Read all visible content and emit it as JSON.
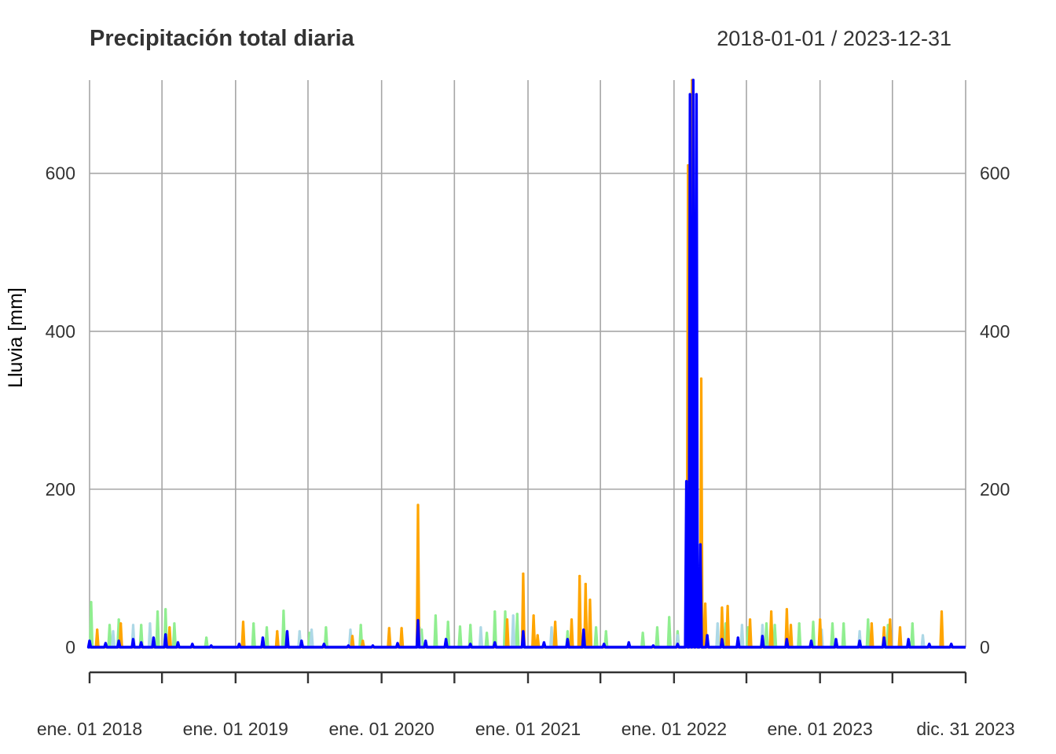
{
  "chart_data": {
    "type": "line",
    "title": "Precipitación total diaria",
    "date_range_label": "2018-01-01 / 2023-12-31",
    "xlabel": "",
    "ylabel": "Lluvia [mm]",
    "ylim": [
      0,
      718
    ],
    "y_ticks": [
      0,
      200,
      400,
      600
    ],
    "x_range": [
      "2018-01-01",
      "2023-12-31"
    ],
    "x_ticks": [
      {
        "date": "2018-01-01",
        "label": "ene. 01 2018"
      },
      {
        "date": "2019-01-01",
        "label": "ene. 01 2019"
      },
      {
        "date": "2020-01-01",
        "label": "ene. 01 2020"
      },
      {
        "date": "2021-01-01",
        "label": "ene. 01 2021"
      },
      {
        "date": "2022-01-01",
        "label": "ene. 01 2022"
      },
      {
        "date": "2023-01-01",
        "label": "ene. 01 2023"
      },
      {
        "date": "2023-12-31",
        "label": "dic. 31 2023"
      }
    ],
    "minor_x_ticks": [
      "2018-07-01",
      "2019-07-01",
      "2020-07-01",
      "2021-07-01",
      "2022-07-01",
      "2023-07-01"
    ],
    "grid": true,
    "secondary_y_axis": true,
    "legend": "none",
    "series": [
      {
        "color": "#90EE90",
        "points": [
          [
            "2018-01-05",
            57
          ],
          [
            "2018-02-20",
            28
          ],
          [
            "2018-03-15",
            35
          ],
          [
            "2018-05-10",
            28
          ],
          [
            "2018-06-20",
            45
          ],
          [
            "2018-07-10",
            48
          ],
          [
            "2018-08-01",
            30
          ],
          [
            "2018-10-20",
            12
          ],
          [
            "2019-02-15",
            30
          ],
          [
            "2019-03-20",
            25
          ],
          [
            "2019-05-01",
            46
          ],
          [
            "2019-07-05",
            18
          ],
          [
            "2019-08-15",
            25
          ],
          [
            "2019-11-10",
            28
          ],
          [
            "2020-04-10",
            22
          ],
          [
            "2020-05-15",
            40
          ],
          [
            "2020-06-15",
            32
          ],
          [
            "2020-07-15",
            26
          ],
          [
            "2020-08-10",
            28
          ],
          [
            "2020-09-20",
            18
          ],
          [
            "2020-10-10",
            45
          ],
          [
            "2020-11-05",
            45
          ],
          [
            "2020-12-05",
            42
          ],
          [
            "2021-03-10",
            22
          ],
          [
            "2021-04-10",
            20
          ],
          [
            "2021-06-20",
            25
          ],
          [
            "2021-07-15",
            20
          ],
          [
            "2021-10-15",
            18
          ],
          [
            "2021-11-20",
            25
          ],
          [
            "2021-12-20",
            38
          ],
          [
            "2022-01-10",
            20
          ],
          [
            "2022-03-01",
            28
          ],
          [
            "2022-05-10",
            30
          ],
          [
            "2022-07-05",
            25
          ],
          [
            "2022-08-20",
            30
          ],
          [
            "2022-09-10",
            28
          ],
          [
            "2022-11-10",
            30
          ],
          [
            "2022-12-15",
            32
          ],
          [
            "2023-02-01",
            30
          ],
          [
            "2023-03-01",
            30
          ],
          [
            "2023-05-01",
            35
          ],
          [
            "2023-06-20",
            28
          ],
          [
            "2023-08-20",
            30
          ]
        ]
      },
      {
        "color": "#ADD8E6",
        "points": [
          [
            "2018-03-01",
            20
          ],
          [
            "2018-04-20",
            28
          ],
          [
            "2018-06-01",
            30
          ],
          [
            "2019-06-10",
            20
          ],
          [
            "2019-07-10",
            22
          ],
          [
            "2019-10-15",
            22
          ],
          [
            "2020-04-05",
            25
          ],
          [
            "2020-09-05",
            25
          ],
          [
            "2020-11-25",
            40
          ],
          [
            "2021-03-01",
            25
          ],
          [
            "2021-06-05",
            18
          ],
          [
            "2022-01-10",
            15
          ],
          [
            "2022-02-15",
            15
          ],
          [
            "2022-03-05",
            48
          ],
          [
            "2022-04-20",
            30
          ],
          [
            "2022-06-20",
            28
          ],
          [
            "2022-08-10",
            28
          ],
          [
            "2023-01-05",
            22
          ],
          [
            "2023-04-10",
            20
          ],
          [
            "2023-09-15",
            15
          ]
        ]
      },
      {
        "color": "#FFA500",
        "points": [
          [
            "2018-01-20",
            22
          ],
          [
            "2018-03-20",
            30
          ],
          [
            "2018-07-20",
            25
          ],
          [
            "2019-01-20",
            32
          ],
          [
            "2019-04-15",
            20
          ],
          [
            "2019-10-20",
            14
          ],
          [
            "2019-11-15",
            8
          ],
          [
            "2020-01-20",
            24
          ],
          [
            "2020-02-20",
            24
          ],
          [
            "2020-04-01",
            180
          ],
          [
            "2020-11-10",
            35
          ],
          [
            "2020-12-20",
            93
          ],
          [
            "2021-01-15",
            40
          ],
          [
            "2021-01-25",
            15
          ],
          [
            "2021-03-10",
            32
          ],
          [
            "2021-04-20",
            35
          ],
          [
            "2021-05-10",
            90
          ],
          [
            "2021-05-25",
            80
          ],
          [
            "2021-06-05",
            60
          ],
          [
            "2022-02-05",
            610
          ],
          [
            "2022-02-15",
            718
          ],
          [
            "2022-03-10",
            340
          ],
          [
            "2022-03-20",
            55
          ],
          [
            "2022-05-01",
            50
          ],
          [
            "2022-05-15",
            52
          ],
          [
            "2022-07-10",
            35
          ],
          [
            "2022-09-01",
            45
          ],
          [
            "2022-10-10",
            48
          ],
          [
            "2022-10-20",
            28
          ],
          [
            "2023-01-01",
            35
          ],
          [
            "2023-05-10",
            30
          ],
          [
            "2023-06-10",
            25
          ],
          [
            "2023-06-25",
            35
          ],
          [
            "2023-07-20",
            25
          ],
          [
            "2023-11-01",
            45
          ]
        ]
      },
      {
        "color": "#0000FF",
        "points": [
          [
            "2018-01-01",
            8
          ],
          [
            "2018-02-10",
            5
          ],
          [
            "2018-03-15",
            8
          ],
          [
            "2018-04-20",
            10
          ],
          [
            "2018-05-10",
            6
          ],
          [
            "2018-06-10",
            12
          ],
          [
            "2018-07-10",
            16
          ],
          [
            "2018-08-10",
            6
          ],
          [
            "2018-09-15",
            4
          ],
          [
            "2018-11-01",
            2
          ],
          [
            "2019-01-10",
            4
          ],
          [
            "2019-03-10",
            12
          ],
          [
            "2019-05-10",
            20
          ],
          [
            "2019-06-15",
            8
          ],
          [
            "2019-08-10",
            4
          ],
          [
            "2019-10-10",
            2
          ],
          [
            "2019-12-10",
            2
          ],
          [
            "2020-02-10",
            5
          ],
          [
            "2020-04-01",
            34
          ],
          [
            "2020-04-20",
            8
          ],
          [
            "2020-06-10",
            10
          ],
          [
            "2020-08-10",
            4
          ],
          [
            "2020-10-10",
            6
          ],
          [
            "2020-12-20",
            20
          ],
          [
            "2021-02-10",
            6
          ],
          [
            "2021-04-10",
            10
          ],
          [
            "2021-05-20",
            22
          ],
          [
            "2021-07-10",
            4
          ],
          [
            "2021-09-10",
            6
          ],
          [
            "2021-11-10",
            2
          ],
          [
            "2022-01-10",
            4
          ],
          [
            "2022-02-01",
            210
          ],
          [
            "2022-02-10",
            700
          ],
          [
            "2022-02-18",
            718
          ],
          [
            "2022-02-26",
            700
          ],
          [
            "2022-03-08",
            130
          ],
          [
            "2022-03-25",
            15
          ],
          [
            "2022-05-01",
            10
          ],
          [
            "2022-06-10",
            12
          ],
          [
            "2022-08-10",
            14
          ],
          [
            "2022-10-10",
            10
          ],
          [
            "2022-12-10",
            8
          ],
          [
            "2023-02-10",
            10
          ],
          [
            "2023-04-10",
            8
          ],
          [
            "2023-06-10",
            12
          ],
          [
            "2023-08-10",
            10
          ],
          [
            "2023-10-01",
            4
          ],
          [
            "2023-11-25",
            4
          ]
        ]
      }
    ]
  }
}
